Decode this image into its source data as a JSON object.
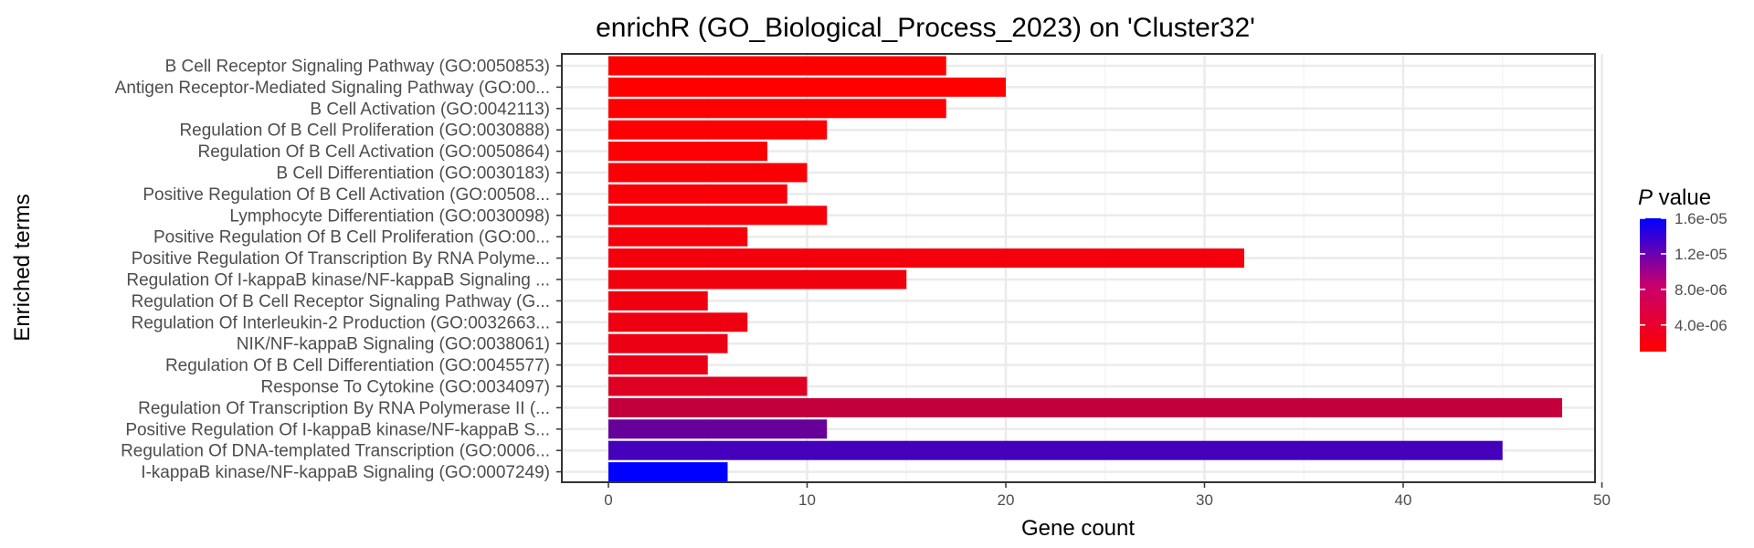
{
  "chart_data": {
    "type": "bar",
    "orientation": "horizontal",
    "title": "enrichR (GO_Biological_Process_2023) on 'Cluster32'",
    "xlabel": "Gene count",
    "ylabel": "Enriched terms",
    "xlim": [
      0,
      50
    ],
    "x_ticks": [
      0,
      10,
      20,
      30,
      40,
      50
    ],
    "grid": true,
    "categories": [
      "B Cell Receptor Signaling Pathway (GO:0050853)",
      "Antigen Receptor-Mediated Signaling Pathway (GO:00...",
      "B Cell Activation (GO:0042113)",
      "Regulation Of B Cell Proliferation (GO:0030888)",
      "Regulation Of B Cell Activation (GO:0050864)",
      "B Cell Differentiation (GO:0030183)",
      "Positive Regulation Of B Cell Activation (GO:00508...",
      "Lymphocyte Differentiation (GO:0030098)",
      "Positive Regulation Of B Cell Proliferation (GO:00...",
      "Positive Regulation Of Transcription By RNA Polyme...",
      "Regulation Of I-kappaB kinase/NF-kappaB Signaling ...",
      "Regulation Of B Cell Receptor Signaling Pathway (G...",
      "Regulation Of Interleukin-2 Production (GO:0032663...",
      "NIK/NF-kappaB Signaling (GO:0038061)",
      "Regulation Of B Cell Differentiation (GO:0045577)",
      "Response To Cytokine (GO:0034097)",
      "Regulation Of Transcription By RNA Polymerase II (...",
      "Positive Regulation Of I-kappaB kinase/NF-kappaB S...",
      "Regulation Of DNA-templated Transcription (GO:0006...",
      "I-kappaB kinase/NF-kappaB Signaling (GO:0007249)"
    ],
    "values": [
      17,
      20,
      17,
      11,
      8,
      10,
      9,
      11,
      7,
      32,
      15,
      5,
      7,
      6,
      5,
      10,
      48,
      11,
      45,
      6
    ],
    "p_values": [
      1e-06,
      1e-06,
      1e-06,
      1.1e-06,
      1.2e-06,
      1.3e-06,
      1.4e-06,
      1.5e-06,
      1.6e-06,
      1.7e-06,
      1.8e-06,
      1.9e-06,
      2e-06,
      2.1e-06,
      2.3e-06,
      3e-06,
      4.5e-06,
      1e-05,
      1.2e-05,
      1.6e-05
    ],
    "legend": {
      "title_italic": "P",
      "title_rest": " value",
      "placement": "right",
      "ticks": [
        "1.6e-05",
        "1.2e-05",
        "8.0e-06",
        "4.0e-06"
      ],
      "tick_values": [
        1.6e-05,
        1.2e-05,
        8e-06,
        4e-06
      ],
      "range": [
        1e-06,
        1.6e-05
      ],
      "color_low": "#ff0000",
      "color_high": "#0000ff"
    },
    "colors": {
      "panel_border": "#333333",
      "grid_major": "#ebebeb",
      "grid_minor": "#f5f5f5",
      "text_axis": "#4d4d4d"
    }
  }
}
